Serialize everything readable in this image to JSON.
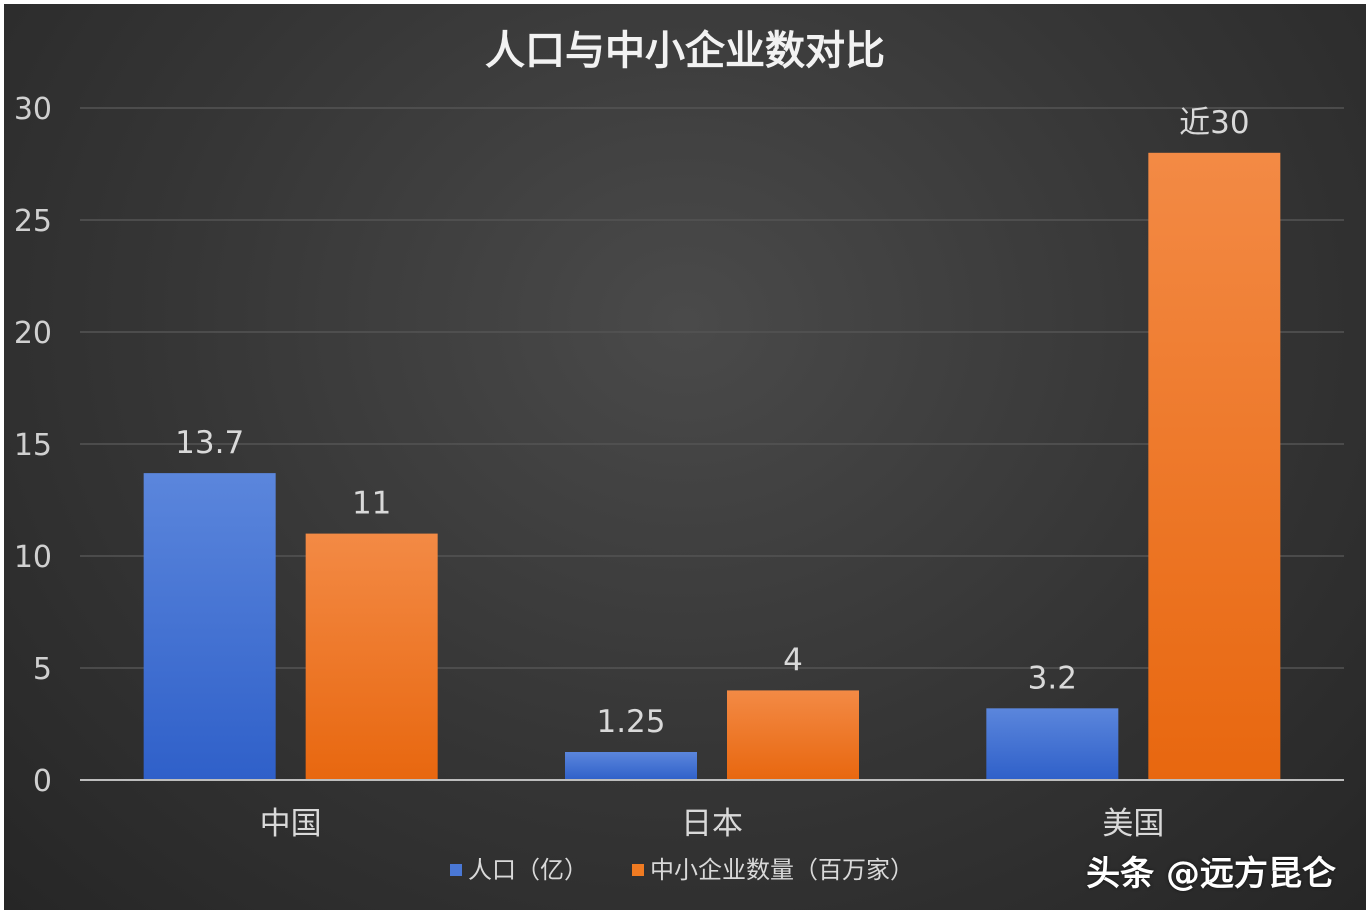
{
  "chart_data": {
    "type": "bar",
    "title": "人口与中小企业数对比",
    "categories": [
      "中国",
      "日本",
      "美国"
    ],
    "series": [
      {
        "name": "人口（亿）",
        "values": [
          13.7,
          1.25,
          3.2
        ],
        "labels": [
          "13.7",
          "1.25",
          "3.2"
        ],
        "color": "#4a78d6"
      },
      {
        "name": "中小企业数量（百万家）",
        "values": [
          11,
          4,
          28
        ],
        "labels": [
          "11",
          "4",
          "近30"
        ],
        "color": "#f07b22"
      }
    ],
    "yticks": [
      "0",
      "5",
      "10",
      "15",
      "20",
      "25",
      "30"
    ],
    "ylim": [
      0,
      30
    ],
    "grid": true,
    "legend_position": "bottom",
    "background": "#333333"
  },
  "watermark": "头条 @远方昆仑"
}
